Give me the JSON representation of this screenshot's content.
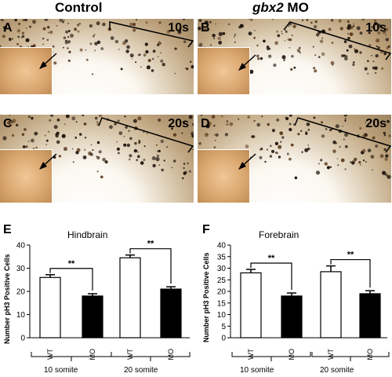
{
  "columns": {
    "control": "Control",
    "gbx2_gene": "gbx2",
    "gbx2_rest": " MO"
  },
  "panels": [
    {
      "letter": "A",
      "stage": "10s"
    },
    {
      "letter": "B",
      "stage": "10s"
    },
    {
      "letter": "C",
      "stage": "20s"
    },
    {
      "letter": "D",
      "stage": "20s"
    }
  ],
  "chart_data": [
    {
      "type": "bar",
      "panel": "E",
      "title": "Hindbrain",
      "ylabel": "Number pH3 Positive Cells",
      "ylim": [
        0,
        40
      ],
      "yticks": [
        0,
        10,
        20,
        30,
        40
      ],
      "categories": [
        "WT",
        "MO",
        "WT",
        "MO"
      ],
      "groups": [
        "10 somite",
        "20 somite"
      ],
      "values": [
        26,
        18,
        34.5,
        21
      ],
      "errors": [
        1.2,
        1,
        1.2,
        1
      ],
      "fills": [
        "#ffffff",
        "#000000",
        "#ffffff",
        "#000000"
      ],
      "significance": [
        "**",
        "**"
      ]
    },
    {
      "type": "bar",
      "panel": "F",
      "title": "Forebrain",
      "ylabel": "Number pH3 Positive Cells",
      "ylim": [
        0,
        40
      ],
      "yticks": [
        0,
        5,
        10,
        15,
        20,
        25,
        30,
        35,
        40
      ],
      "categories": [
        "WT",
        "MO",
        "WT",
        "MO"
      ],
      "groups": [
        "10 somite",
        "20 somite"
      ],
      "values": [
        28,
        18,
        28.5,
        19
      ],
      "errors": [
        1.5,
        1.3,
        2.5,
        1.3
      ],
      "fills": [
        "#ffffff",
        "#000000",
        "#ffffff",
        "#000000"
      ],
      "significance": [
        "**",
        "**"
      ]
    }
  ]
}
